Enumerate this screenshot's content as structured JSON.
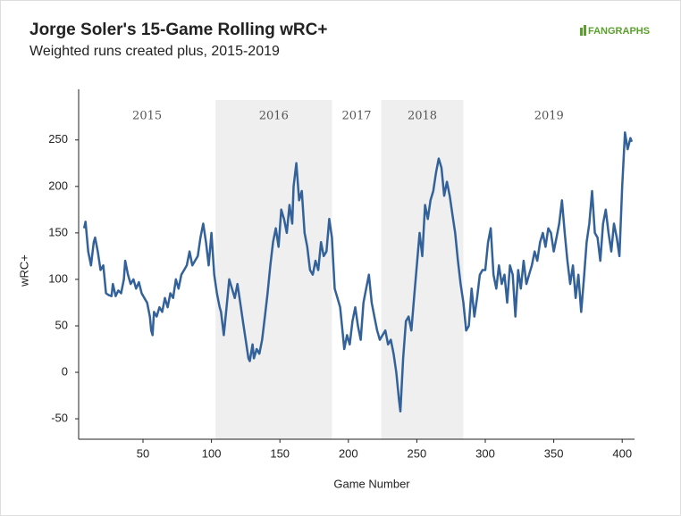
{
  "chart_data": {
    "type": "line",
    "title": "Jorge Soler's 15-Game Rolling wRC+",
    "subtitle": "Weighted runs created plus, 2015-2019",
    "brand": "FANGRAPHS",
    "x_label": "Game Number",
    "y_label": "wRC+",
    "xlim": [
      3,
      409
    ],
    "ylim": [
      -72,
      293
    ],
    "xticks": [
      50,
      100,
      150,
      200,
      250,
      300,
      350,
      400
    ],
    "yticks": [
      -50,
      0,
      50,
      100,
      150,
      200,
      250
    ],
    "seasons": [
      {
        "label": "2015",
        "start": 3,
        "end": 103,
        "shaded": false
      },
      {
        "label": "2016",
        "start": 103,
        "end": 188,
        "shaded": true
      },
      {
        "label": "2017",
        "start": 188,
        "end": 224,
        "shaded": false
      },
      {
        "label": "2018",
        "start": 224,
        "end": 284,
        "shaded": true
      },
      {
        "label": "2019",
        "start": 284,
        "end": 409,
        "shaded": false
      }
    ],
    "shade_color": "#efefef",
    "color": "#33619a",
    "x": [
      7,
      8,
      10,
      12,
      14,
      15,
      17,
      19,
      21,
      23,
      25,
      27,
      28,
      30,
      32,
      34,
      36,
      37,
      39,
      41,
      43,
      45,
      47,
      49,
      51,
      53,
      55,
      56,
      57,
      58,
      60,
      62,
      64,
      66,
      68,
      70,
      72,
      74,
      76,
      78,
      80,
      82,
      84,
      86,
      88,
      90,
      92,
      94,
      96,
      98,
      100,
      102,
      104,
      106,
      107,
      109,
      111,
      113,
      115,
      117,
      119,
      121,
      123,
      125,
      127,
      128,
      130,
      131,
      133,
      135,
      137,
      139,
      141,
      143,
      145,
      147,
      149,
      151,
      153,
      155,
      157,
      159,
      160,
      162,
      164,
      166,
      168,
      170,
      172,
      174,
      176,
      178,
      180,
      182,
      184,
      186,
      188,
      190,
      192,
      194,
      196,
      197,
      199,
      201,
      203,
      205,
      207,
      209,
      211,
      213,
      215,
      217,
      219,
      221,
      223,
      225,
      227,
      229,
      231,
      233,
      235,
      237,
      238,
      240,
      242,
      244,
      246,
      248,
      250,
      252,
      254,
      256,
      258,
      260,
      262,
      264,
      266,
      268,
      270,
      272,
      274,
      276,
      278,
      280,
      282,
      284,
      286,
      288,
      290,
      292,
      294,
      296,
      298,
      300,
      302,
      304,
      306,
      308,
      310,
      312,
      314,
      316,
      318,
      320,
      322,
      324,
      326,
      328,
      330,
      332,
      334,
      336,
      338,
      340,
      342,
      344,
      346,
      348,
      350,
      352,
      354,
      356,
      358,
      360,
      362,
      364,
      366,
      368,
      370,
      372,
      374,
      376,
      378,
      380,
      382,
      384,
      386,
      388,
      390,
      392,
      394,
      396,
      398,
      400,
      402,
      404,
      406,
      407
    ],
    "values": [
      155,
      162,
      130,
      115,
      140,
      145,
      130,
      110,
      115,
      85,
      83,
      82,
      95,
      82,
      88,
      85,
      100,
      120,
      105,
      95,
      100,
      90,
      97,
      85,
      80,
      75,
      60,
      45,
      40,
      65,
      60,
      70,
      65,
      80,
      70,
      85,
      80,
      100,
      90,
      105,
      110,
      115,
      130,
      115,
      120,
      125,
      145,
      160,
      140,
      115,
      150,
      105,
      85,
      70,
      65,
      40,
      70,
      100,
      90,
      80,
      95,
      75,
      55,
      35,
      15,
      12,
      30,
      15,
      25,
      20,
      35,
      60,
      85,
      115,
      140,
      155,
      135,
      175,
      165,
      150,
      180,
      160,
      200,
      225,
      185,
      195,
      150,
      135,
      110,
      105,
      120,
      110,
      140,
      125,
      130,
      165,
      145,
      90,
      80,
      70,
      40,
      25,
      40,
      30,
      55,
      70,
      50,
      35,
      75,
      90,
      105,
      75,
      60,
      45,
      35,
      40,
      45,
      30,
      35,
      20,
      0,
      -30,
      -42,
      15,
      55,
      60,
      45,
      80,
      115,
      150,
      125,
      180,
      165,
      185,
      195,
      215,
      230,
      220,
      190,
      205,
      190,
      170,
      150,
      120,
      95,
      75,
      45,
      50,
      90,
      60,
      80,
      105,
      110,
      110,
      140,
      155,
      105,
      90,
      115,
      95,
      105,
      75,
      115,
      105,
      60,
      110,
      90,
      120,
      95,
      105,
      115,
      130,
      120,
      140,
      150,
      135,
      155,
      150,
      130,
      145,
      160,
      185,
      150,
      120,
      95,
      115,
      80,
      105,
      65,
      100,
      140,
      160,
      195,
      150,
      145,
      120,
      160,
      175,
      150,
      130,
      160,
      145,
      125,
      200,
      258,
      240,
      252,
      248
    ]
  }
}
